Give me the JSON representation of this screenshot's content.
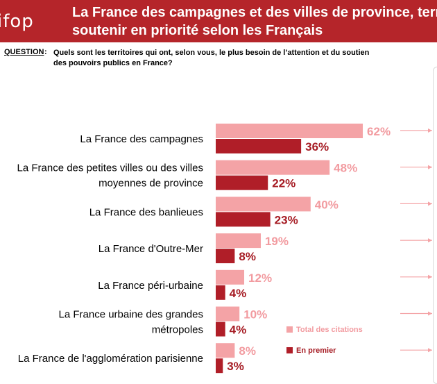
{
  "header": {
    "logo_text": "ifop",
    "title": "La France des campagnes et des villes de province, terri\nsoutenir en priorité selon les Français"
  },
  "question": {
    "label": "QUESTION",
    "colon": ":",
    "text": "Quels sont les territoires qui ont, selon vous, le plus besoin de l’attention et du soutien des pouvoirs publics en France?"
  },
  "colors": {
    "header_bg": "#b5252a",
    "total": "#f4a3a6",
    "first": "#b01e28",
    "total_label": "#f29ba0",
    "first_label": "#a61c24",
    "arrow": "#f4a3a6"
  },
  "legend": {
    "total_label": "Total des citations",
    "first_label": "En premier"
  },
  "chart_data": {
    "type": "bar",
    "orientation": "horizontal",
    "categories": [
      [
        "La France des campagnes"
      ],
      [
        "La France des petites villes ou des villes",
        "moyennes de province"
      ],
      [
        "La France des banlieues"
      ],
      [
        "La France d'Outre-Mer"
      ],
      [
        "La France péri-urbaine"
      ],
      [
        "La France urbaine des grandes",
        "métropoles"
      ],
      [
        "La France de l'agglomération parisienne"
      ]
    ],
    "series": [
      {
        "name": "Total des citations",
        "values": [
          62,
          48,
          40,
          19,
          12,
          10,
          8
        ],
        "labels": [
          "62%",
          "48%",
          "40%",
          "19%",
          "12%",
          "10%",
          "8%"
        ]
      },
      {
        "name": "En premier",
        "values": [
          36,
          22,
          23,
          8,
          4,
          4,
          3
        ],
        "labels": [
          "36%",
          "22%",
          "23%",
          "8%",
          "4%",
          "4%",
          "3%"
        ]
      }
    ],
    "legend_position": "bottom-right",
    "grid": false
  }
}
